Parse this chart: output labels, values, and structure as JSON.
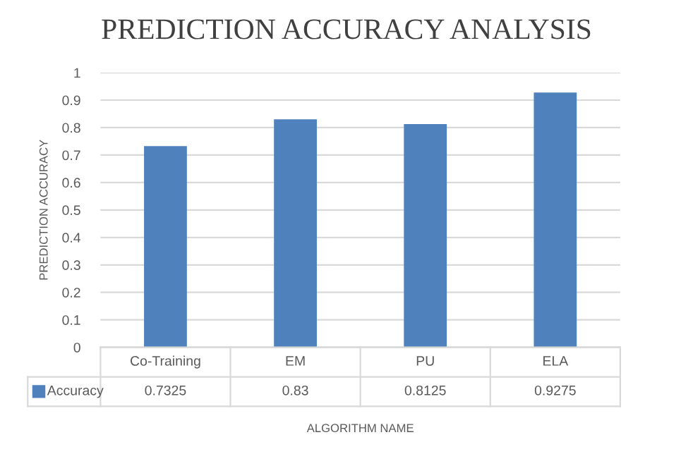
{
  "chart_data": {
    "type": "bar",
    "title": "PREDICTION ACCURACY ANALYSIS",
    "xlabel": "ALGORITHM NAME",
    "ylabel": "PREDICTION ACCURACY",
    "categories": [
      "Co-Training",
      "EM",
      "PU",
      "ELA"
    ],
    "series": [
      {
        "name": "Accuracy",
        "color": "#4f81bd",
        "values": [
          0.7325,
          0.83,
          0.8125,
          0.9275
        ]
      }
    ],
    "ylim": [
      0,
      1
    ],
    "yticks": [
      0,
      0.1,
      0.2,
      0.3,
      0.4,
      0.5,
      0.6,
      0.7,
      0.8,
      0.9,
      1
    ],
    "grid": "y",
    "data_labels": true
  }
}
